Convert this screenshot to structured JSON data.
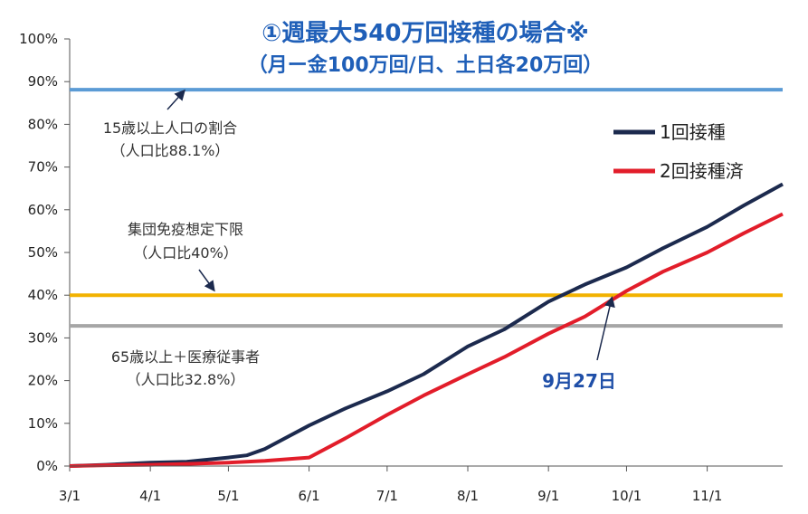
{
  "chart_data": {
    "type": "line",
    "title": "①週最大540万回接種の場合※",
    "subtitle": "（月ー金100万回/日、土日各20万回）",
    "xlabel": "",
    "ylabel": "",
    "ylim": [
      0,
      100
    ],
    "y_ticks": [
      "0%",
      "10%",
      "20%",
      "30%",
      "40%",
      "50%",
      "60%",
      "70%",
      "80%",
      "90%",
      "100%"
    ],
    "x_ticks": [
      "3/1",
      "4/1",
      "5/1",
      "6/1",
      "7/1",
      "8/1",
      "9/1",
      "10/1",
      "11/1"
    ],
    "grid": false,
    "legend_position": "top-right",
    "series": [
      {
        "name": "1回接種",
        "color": "#1c2a4e",
        "x": [
          "3/1",
          "3/15",
          "4/1",
          "4/15",
          "5/1",
          "5/8",
          "5/15",
          "6/1",
          "6/15",
          "7/1",
          "7/15",
          "8/1",
          "8/15",
          "9/1",
          "9/15",
          "10/1",
          "10/15",
          "11/1",
          "11/15",
          "11/30"
        ],
        "values": [
          0,
          0.3,
          0.8,
          1.0,
          2.0,
          2.5,
          4.0,
          9.5,
          13.5,
          17.5,
          21.5,
          28.0,
          32.0,
          38.5,
          42.5,
          46.5,
          51.0,
          56.0,
          61.0,
          66.0
        ]
      },
      {
        "name": "2回接種済",
        "color": "#e21d2a",
        "x": [
          "3/1",
          "3/15",
          "4/1",
          "4/15",
          "5/1",
          "5/15",
          "6/1",
          "6/15",
          "7/1",
          "7/15",
          "8/1",
          "8/15",
          "9/1",
          "9/15",
          "10/1",
          "10/15",
          "11/1",
          "11/15",
          "11/30"
        ],
        "values": [
          0,
          0.2,
          0.3,
          0.5,
          0.8,
          1.2,
          2.0,
          6.5,
          12.0,
          16.5,
          21.5,
          25.5,
          31.0,
          35.0,
          41.0,
          45.5,
          50.0,
          54.5,
          59.0
        ]
      }
    ],
    "reference_lines": [
      {
        "value": 88.1,
        "color": "#5b9bd5",
        "label1": "15歳以上人口の割合",
        "label2": "（人口比88.1%）"
      },
      {
        "value": 40,
        "color": "#f2b200",
        "label1": "集団免疫想定下限",
        "label2": "（人口比40%）"
      },
      {
        "value": 32.8,
        "color": "#a6a6a6",
        "label1": "65歳以上＋医療従事者",
        "label2": "（人口比32.8%）"
      }
    ],
    "annotation": {
      "text": "9月27日",
      "x": "9/27",
      "value": 40
    }
  }
}
